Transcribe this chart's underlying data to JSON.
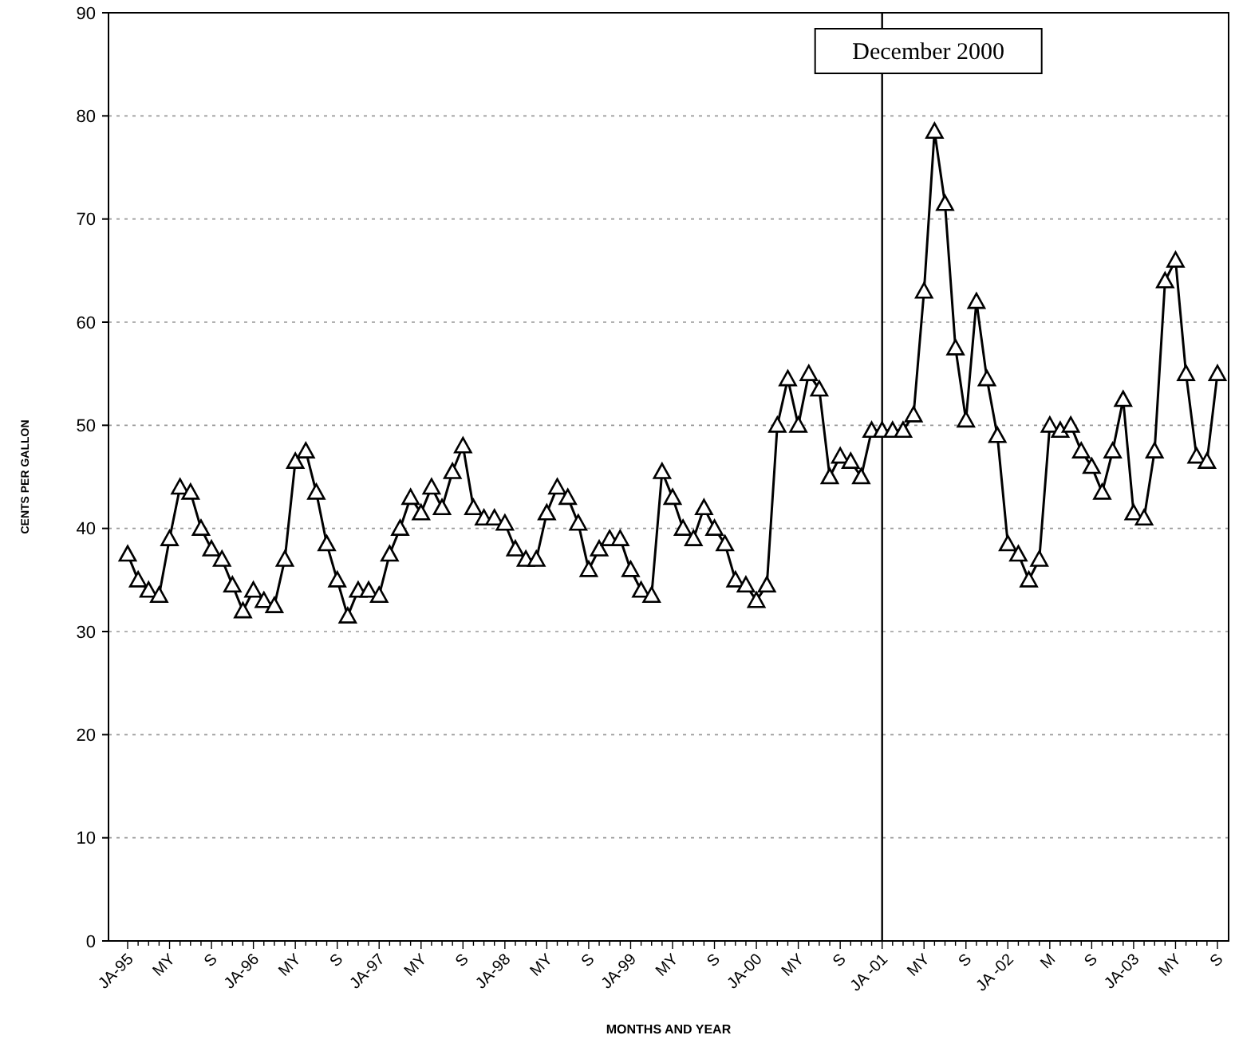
{
  "chart_data": {
    "type": "line",
    "xlabel": "MONTHS AND YEAR",
    "ylabel": "CENTS PER GALLON",
    "categories": [
      "JA-95",
      null,
      null,
      null,
      "MY",
      null,
      null,
      null,
      "S",
      null,
      null,
      null,
      "JA-96",
      null,
      null,
      null,
      "MY",
      null,
      null,
      null,
      "S",
      null,
      null,
      null,
      "JA-97",
      null,
      null,
      null,
      "MY",
      null,
      null,
      null,
      "S",
      null,
      null,
      null,
      "JA-98",
      null,
      null,
      null,
      "MY",
      null,
      null,
      null,
      "S",
      null,
      null,
      null,
      "JA-99",
      null,
      null,
      null,
      "MY",
      null,
      null,
      null,
      "S",
      null,
      null,
      null,
      "JA-00",
      null,
      null,
      null,
      "MY",
      null,
      null,
      null,
      "S",
      null,
      null,
      null,
      "JA -01",
      null,
      null,
      null,
      "MY",
      null,
      null,
      null,
      "S",
      null,
      null,
      null,
      "JA -02",
      null,
      null,
      null,
      "M",
      null,
      null,
      null,
      "S",
      null,
      null,
      null,
      "JA-03",
      null,
      null,
      null,
      "MY",
      null,
      null,
      null,
      "S"
    ],
    "series": [
      {
        "color": "#000000",
        "values": [
          37.5,
          35,
          34,
          33.5,
          39,
          44,
          43.5,
          40,
          38,
          37,
          34.5,
          32,
          34,
          33,
          32.5,
          37,
          46.5,
          47.5,
          43.5,
          38.5,
          35,
          31.5,
          34,
          34,
          33.5,
          37.5,
          40,
          43,
          41.5,
          44,
          42,
          45.5,
          48,
          42,
          41,
          41,
          40.5,
          38,
          37,
          37,
          41.5,
          44,
          43,
          40.5,
          36,
          38,
          39,
          39,
          36,
          34,
          33.5,
          45.5,
          43,
          40,
          39,
          42,
          40,
          38.5,
          35,
          34.5,
          33,
          34.5,
          50,
          54.5,
          50,
          55,
          53.5,
          45,
          47,
          46.5,
          45,
          49.5,
          49.5,
          49.5,
          49.5,
          51,
          63,
          78.5,
          71.5,
          57.5,
          50.5,
          62,
          54.5,
          49,
          38.5,
          37.5,
          35,
          37,
          50,
          49.5,
          50,
          47.5,
          46,
          43.5,
          47.5,
          52.5,
          41.5,
          41,
          47.5,
          64,
          66,
          55,
          47,
          46.5,
          55
        ]
      }
    ],
    "ylim": [
      0,
      90
    ],
    "yticks": [
      0,
      10,
      20,
      30,
      40,
      50,
      60,
      70,
      80,
      90
    ],
    "grid": "y",
    "marker": "triangle",
    "line_style": "solid",
    "ref_lines": [
      {
        "axis": "x",
        "value": "JA -01",
        "label": "December 2000"
      }
    ]
  }
}
